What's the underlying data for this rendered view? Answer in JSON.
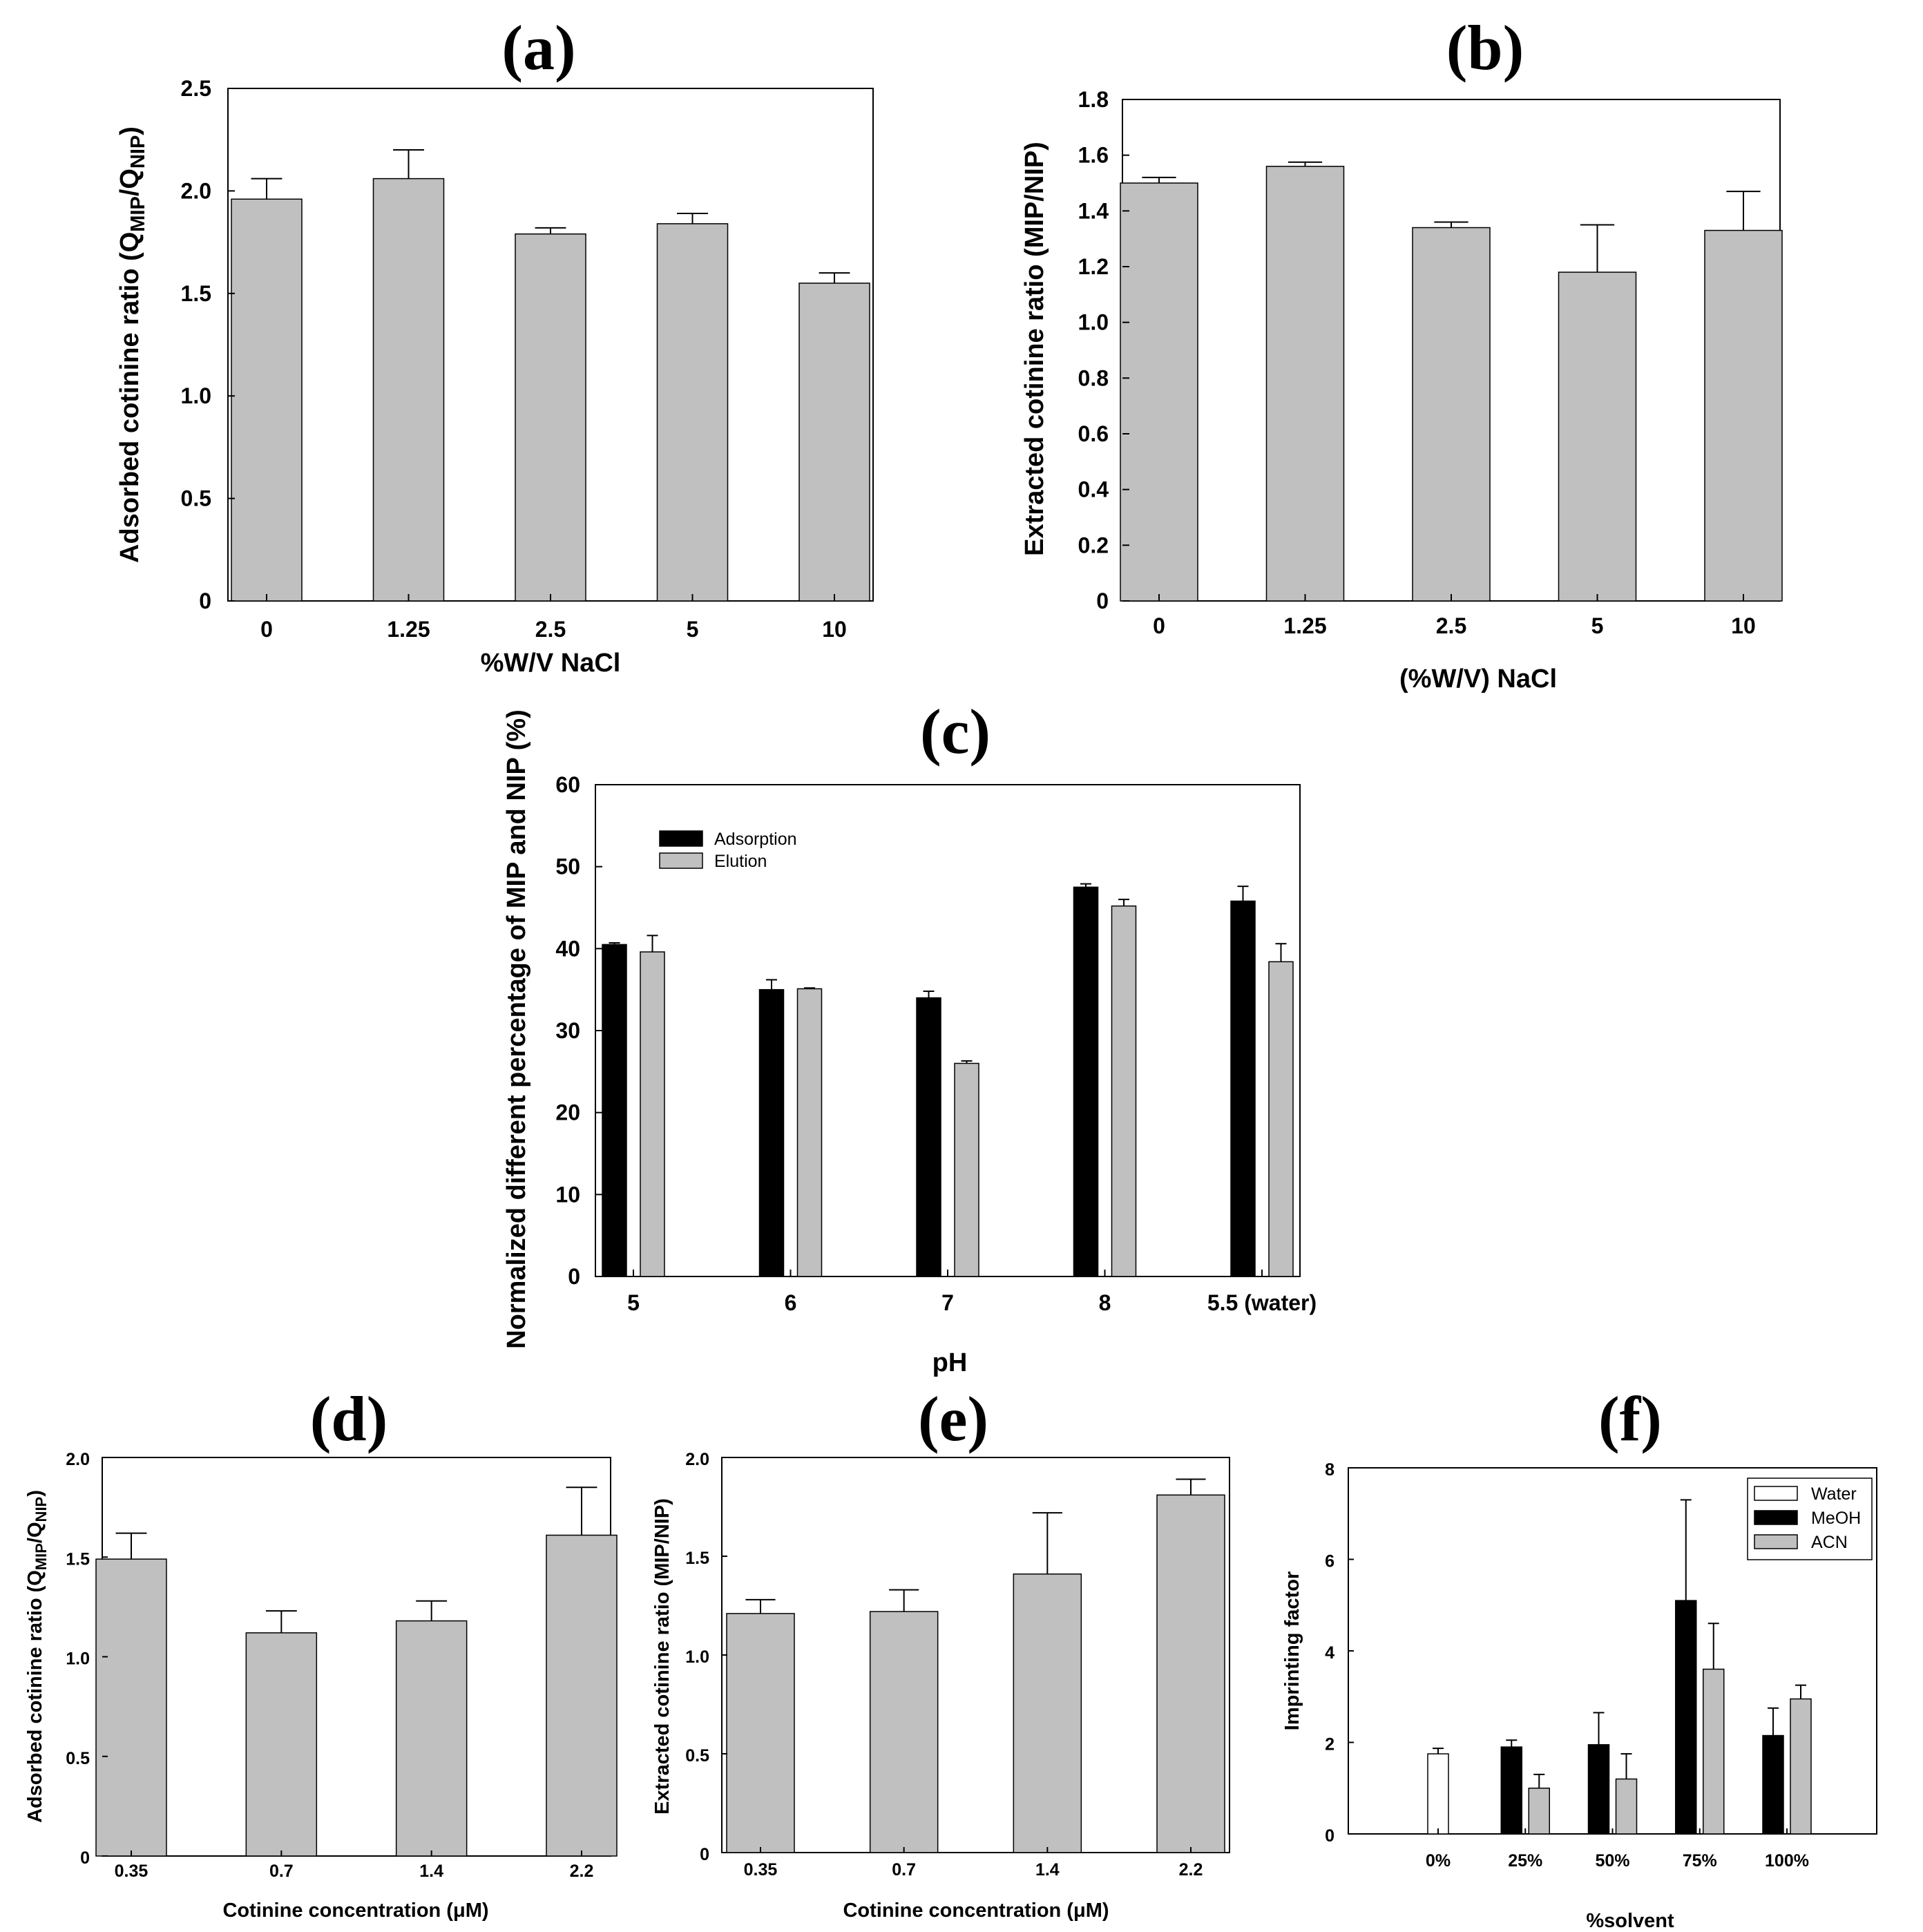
{
  "colors": {
    "gray_bar": "#c0c0c0",
    "black_bar": "#000000",
    "white_bar": "#ffffff"
  },
  "chart_data": [
    {
      "id": "a",
      "type": "bar",
      "title": "(a)",
      "categories": [
        "0",
        "1.25",
        "2.5",
        "5",
        "10"
      ],
      "values": [
        1.96,
        2.06,
        1.79,
        1.84,
        1.55
      ],
      "errors": [
        0.1,
        0.14,
        0.03,
        0.05,
        0.05
      ],
      "xlabel": "%W/V NaCl",
      "ylabel": "Adsorbed cotinine ratio (Q",
      "ylabel_sub1": "MIP",
      "ylabel_mid": "/Q",
      "ylabel_sub2": "NIP",
      "ylabel_end": ")",
      "yticks": [
        "0",
        "0.5",
        "1.0",
        "1.5",
        "2.0",
        "2.5"
      ],
      "ylim": [
        0,
        2.5
      ]
    },
    {
      "id": "b",
      "type": "bar",
      "title": "(b)",
      "categories": [
        "0",
        "1.25",
        "2.5",
        "5",
        "10"
      ],
      "values": [
        1.5,
        1.56,
        1.34,
        1.18,
        1.33
      ],
      "errors": [
        0.02,
        0.015,
        0.02,
        0.17,
        0.14
      ],
      "xlabel": "(%W/V) NaCl",
      "ylabel": "Extracted cotinine ratio (MIP/NIP)",
      "yticks": [
        "0",
        "0.2",
        "0.4",
        "0.6",
        "0.8",
        "1.0",
        "1.2",
        "1.4",
        "1.6",
        "1.8"
      ],
      "ylim": [
        0,
        1.8
      ]
    },
    {
      "id": "c",
      "type": "bar",
      "title": "(c)",
      "categories": [
        "5",
        "6",
        "7",
        "8",
        "5.5 (water)"
      ],
      "series": [
        {
          "name": "Adsorption",
          "color": "#000000",
          "values": [
            40.5,
            35.0,
            34.0,
            47.5,
            45.8
          ],
          "errors": [
            0.2,
            1.2,
            0.8,
            0.4,
            1.8
          ]
        },
        {
          "name": "Elution",
          "color": "#c0c0c0",
          "values": [
            39.6,
            35.1,
            26.0,
            45.2,
            38.4
          ],
          "errors": [
            2.0,
            0.1,
            0.3,
            0.8,
            2.2
          ]
        }
      ],
      "xlabel": "pH",
      "ylabel": "Normalized  different percentage of MIP and NIP (%)",
      "yticks": [
        "0",
        "10",
        "20",
        "30",
        "40",
        "50",
        "60"
      ],
      "ylim": [
        0,
        60
      ],
      "legend": "top-left"
    },
    {
      "id": "d",
      "type": "bar",
      "title": "(d)",
      "categories": [
        "0.35",
        "0.7",
        "1.4",
        "2.2"
      ],
      "values": [
        1.49,
        1.12,
        1.18,
        1.61
      ],
      "errors": [
        0.13,
        0.11,
        0.1,
        0.24
      ],
      "xlabel": "Cotinine concentration (μM)",
      "ylabel": "Adsorbed cotinine ratio (Q",
      "ylabel_sub1": "MIP",
      "ylabel_mid": "/Q",
      "ylabel_sub2": "NIP",
      "ylabel_end": ")",
      "yticks": [
        "0",
        "0.5",
        "1.0",
        "1.5",
        "2.0"
      ],
      "ylim": [
        0,
        2.0
      ]
    },
    {
      "id": "e",
      "type": "bar",
      "title": "(e)",
      "categories": [
        "0.35",
        "0.7",
        "1.4",
        "2.2"
      ],
      "values": [
        1.21,
        1.22,
        1.41,
        1.81
      ],
      "errors": [
        0.07,
        0.11,
        0.31,
        0.08
      ],
      "xlabel": "Cotinine concentration (μM)",
      "ylabel": "Extracted cotinine ratio (MIP/NIP)",
      "yticks": [
        "0",
        "0.5",
        "1.0",
        "1.5",
        "2.0"
      ],
      "ylim": [
        0,
        2.0
      ]
    },
    {
      "id": "f",
      "type": "bar",
      "title": "(f)",
      "categories": [
        "0%",
        "25%",
        "50%",
        "75%",
        "100%"
      ],
      "series": [
        {
          "name": "Water",
          "color": "#ffffff",
          "values": [
            1.75,
            null,
            null,
            null,
            null
          ],
          "errors": [
            0.12,
            null,
            null,
            null,
            null
          ]
        },
        {
          "name": "MeOH",
          "color": "#000000",
          "values": [
            null,
            1.9,
            1.95,
            5.1,
            2.15
          ],
          "errors": [
            null,
            0.15,
            0.7,
            2.2,
            0.6
          ]
        },
        {
          "name": "ACN",
          "color": "#c0c0c0",
          "values": [
            null,
            1.0,
            1.2,
            3.6,
            2.95
          ],
          "errors": [
            null,
            0.3,
            0.55,
            1.0,
            0.3
          ]
        }
      ],
      "xlabel": "%solvent",
      "ylabel": "Imprinting factor",
      "yticks": [
        "0",
        "2",
        "4",
        "6",
        "8"
      ],
      "ylim": [
        0,
        8
      ],
      "legend": "top-right"
    }
  ]
}
